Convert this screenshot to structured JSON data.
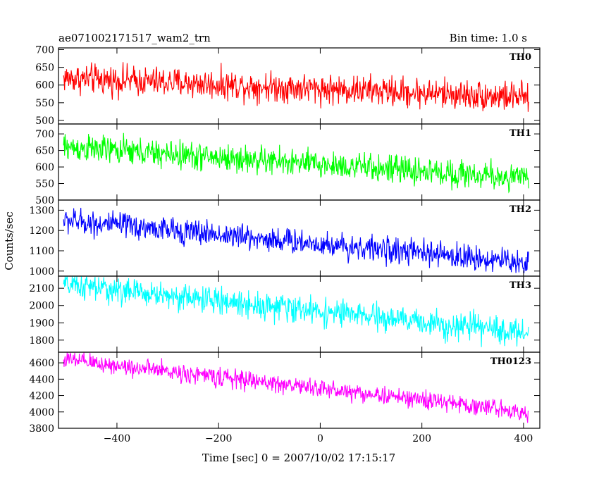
{
  "header": {
    "left": "ae071002171517_wam2_trn",
    "right": "Bin time: 1.0 s"
  },
  "chart_data": {
    "type": "line",
    "xlabel": "Time [sec] 0 = 2007/10/02 17:15:17",
    "ylabel": "Counts/sec",
    "xlim": [
      -515,
      432
    ],
    "x_range": [
      -505,
      410
    ],
    "x_step": 1.0,
    "x_ticks": [
      -400,
      -200,
      0,
      200,
      400
    ],
    "grid": false,
    "panels": [
      {
        "name": "TH0",
        "color": "#ff0000",
        "ylim": [
          490,
          705
        ],
        "y_ticks": [
          500,
          550,
          600,
          650,
          700
        ],
        "trend_start": 620,
        "trend_end": 565,
        "noise": 30
      },
      {
        "name": "TH1",
        "color": "#00ff00",
        "ylim": [
          500,
          730
        ],
        "y_ticks": [
          500,
          550,
          600,
          650,
          700
        ],
        "trend_start": 660,
        "trend_end": 565,
        "noise": 30
      },
      {
        "name": "TH2",
        "color": "#0000ff",
        "ylim": [
          975,
          1350
        ],
        "y_ticks": [
          1000,
          1100,
          1200,
          1300
        ],
        "trend_start": 1250,
        "trend_end": 1040,
        "noise": 45
      },
      {
        "name": "TH3",
        "color": "#00ffff",
        "ylim": [
          1730,
          2170
        ],
        "y_ticks": [
          1800,
          1900,
          2000,
          2100
        ],
        "trend_start": 2120,
        "trend_end": 1840,
        "noise": 55
      },
      {
        "name": "TH0123",
        "color": "#ff00ff",
        "ylim": [
          3800,
          4730
        ],
        "y_ticks": [
          3800,
          4000,
          4200,
          4400,
          4600
        ],
        "trend_start": 4640,
        "trend_end": 4000,
        "noise": 80
      }
    ]
  }
}
